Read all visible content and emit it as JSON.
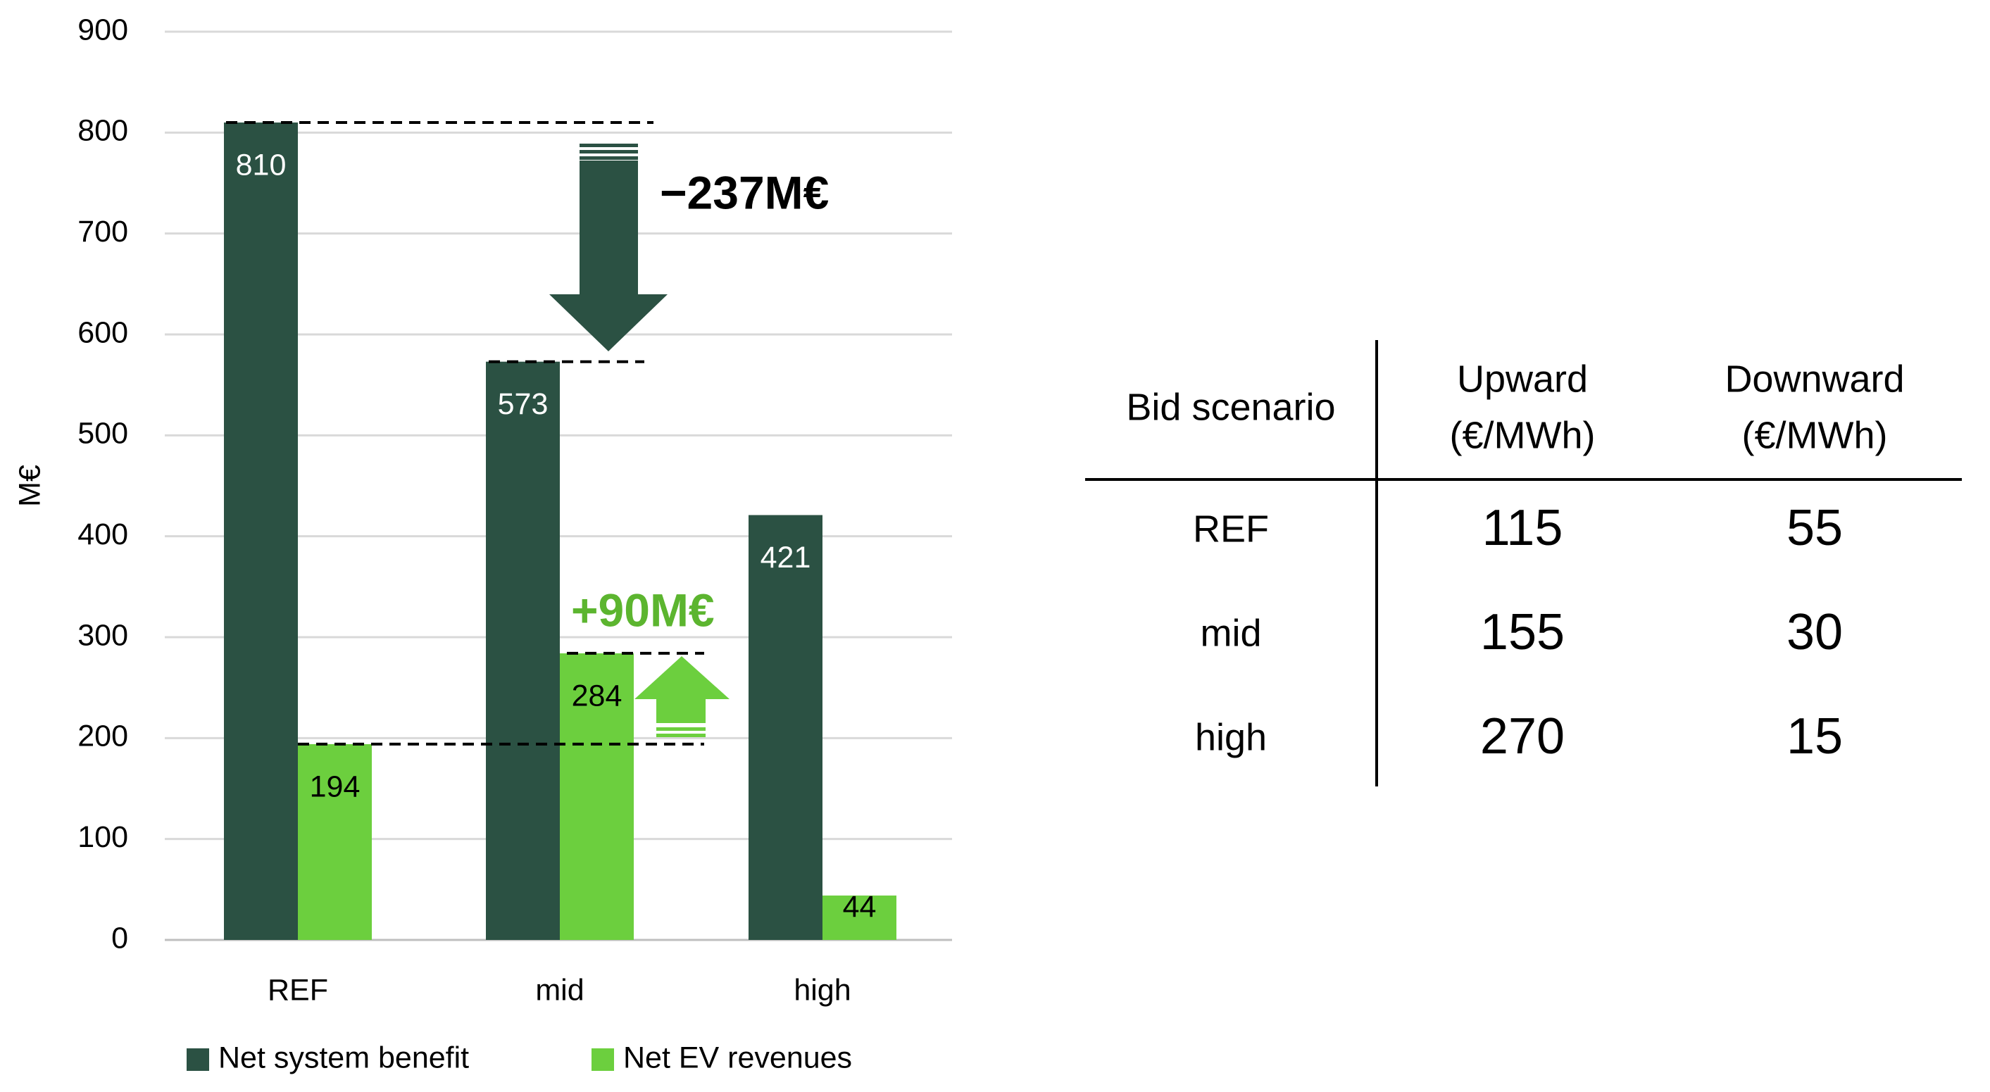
{
  "chart_data": {
    "type": "bar",
    "y_label": "M€",
    "categories": [
      "REF",
      "mid",
      "high"
    ],
    "series": [
      {
        "name": "Net system benefit",
        "color": "#2b5143",
        "values": [
          810,
          573,
          421
        ]
      },
      {
        "name": "Net EV revenues",
        "color": "#6ccf3e",
        "values": [
          194,
          284,
          44
        ]
      }
    ],
    "ylim": [
      0,
      900
    ],
    "yticks": [
      0,
      100,
      200,
      300,
      400,
      500,
      600,
      700,
      800,
      900
    ],
    "grid": true,
    "annotations": [
      {
        "text": "−237M€"
      },
      {
        "text": "+90M€"
      }
    ]
  },
  "table": {
    "header": [
      [
        "Bid scenario"
      ],
      [
        "Upward",
        "(€/MWh)"
      ],
      [
        "Downward",
        "(€/MWh)"
      ]
    ],
    "rows": [
      [
        "REF",
        115,
        55
      ],
      [
        "mid",
        155,
        30
      ],
      [
        "high",
        270,
        15
      ]
    ]
  }
}
